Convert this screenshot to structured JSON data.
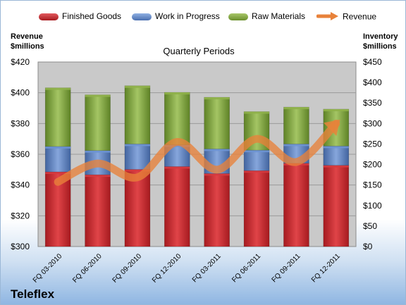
{
  "company": "Teleflex",
  "colors": {
    "finished": "#c9252b",
    "wip": "#5b82c5",
    "raw": "#7fa33a",
    "revenue": "#e8823a"
  },
  "chart_data": {
    "type": "bar",
    "stacked": true,
    "title": "Quarterly Periods",
    "categories": [
      "FQ 03-2010",
      "FQ 06-2010",
      "FQ 09-2010",
      "FQ 12-2010",
      "FQ 03-2011",
      "FQ 06-2011",
      "FQ 09-2011",
      "FQ 12-2011"
    ],
    "left_axis": {
      "label_line1": "Revenue",
      "label_line2": "$millions",
      "range": [
        300,
        420
      ],
      "ticks": [
        "$420",
        "$400",
        "$380",
        "$360",
        "$340",
        "$320",
        "$300"
      ]
    },
    "right_axis": {
      "label_line1": "Inventory",
      "label_line2": "$millions",
      "range": [
        0,
        450
      ],
      "ticks": [
        "$450",
        "$400",
        "$350",
        "$300",
        "$250",
        "$200",
        "$150",
        "$100",
        "$50",
        "$0"
      ]
    },
    "series": [
      {
        "name": "Finished Goods",
        "axis": "right",
        "values": [
          182,
          175,
          188,
          195,
          178,
          185,
          203,
          198
        ]
      },
      {
        "name": "Work in Progress",
        "axis": "right",
        "values": [
          62,
          59,
          62,
          53,
          60,
          50,
          47,
          47
        ]
      },
      {
        "name": "Raw Materials",
        "axis": "right",
        "values": [
          143,
          136,
          142,
          128,
          126,
          94,
          90,
          90
        ]
      },
      {
        "name": "Revenue",
        "axis": "left",
        "type": "line",
        "values": [
          342,
          354,
          345,
          368,
          350,
          370,
          355,
          380
        ]
      }
    ],
    "grid": true,
    "legend_position": "top"
  }
}
